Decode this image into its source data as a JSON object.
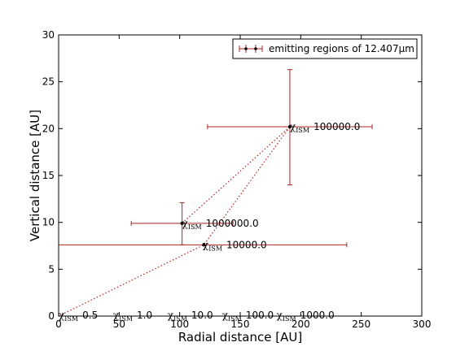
{
  "chart_data": {
    "type": "scatter",
    "xlabel": "Radial distance [AU]",
    "ylabel": "Vertical distance [AU]",
    "xlim": [
      0,
      300
    ],
    "ylim": [
      0,
      30
    ],
    "xticks": [
      0,
      50,
      100,
      150,
      200,
      250,
      300
    ],
    "yticks": [
      0,
      5,
      10,
      15,
      20,
      25,
      30
    ],
    "grid": false,
    "legend_position": "top-right",
    "series": [
      {
        "name": "emitting regions of 12.407μm",
        "color": "#b22222",
        "points": [
          {
            "x": 102,
            "y": 9.9,
            "xerr_low": 42,
            "xerr_high": 42,
            "yerr_low": 2.3,
            "yerr_high": 2.2
          },
          {
            "x": 120,
            "y": 7.6,
            "xerr_low": 120,
            "xerr_high": 118,
            "yerr_low": 0,
            "yerr_high": 0
          },
          {
            "x": 191,
            "y": 20.2,
            "xerr_low": 68,
            "xerr_high": 68,
            "yerr_low": 6.2,
            "yerr_high": 6.1
          }
        ]
      }
    ],
    "dotted_lines": [
      [
        [
          0,
          0
        ],
        [
          120,
          7.6
        ],
        [
          191,
          20.2
        ]
      ],
      [
        [
          102,
          9.9
        ],
        [
          191,
          20.2
        ]
      ]
    ],
    "annotations": [
      {
        "x": 102,
        "y": 9.9,
        "symbol": "χ",
        "subscript": "ISM",
        "value": "1000000.0"
      },
      {
        "x": 119,
        "y": 7.6,
        "symbol": "χ",
        "subscript": "ISM",
        "value": "10000.0"
      },
      {
        "x": 191,
        "y": 20.2,
        "symbol": "χ",
        "subscript": "ISM",
        "value": "100000.0"
      },
      {
        "x": 0,
        "y": 0.1,
        "symbol": "χ",
        "subscript": "ISM",
        "value": "0.5"
      },
      {
        "x": 45,
        "y": 0.1,
        "symbol": "χ",
        "subscript": "ISM",
        "value": "1.0"
      },
      {
        "x": 90,
        "y": 0.1,
        "symbol": "χ",
        "subscript": "ISM",
        "value": "10.0"
      },
      {
        "x": 135,
        "y": 0.1,
        "symbol": "χ",
        "subscript": "ISM",
        "value": "100.0"
      },
      {
        "x": 180,
        "y": 0.1,
        "symbol": "χ",
        "subscript": "ISM",
        "value": "1000.0"
      }
    ]
  }
}
